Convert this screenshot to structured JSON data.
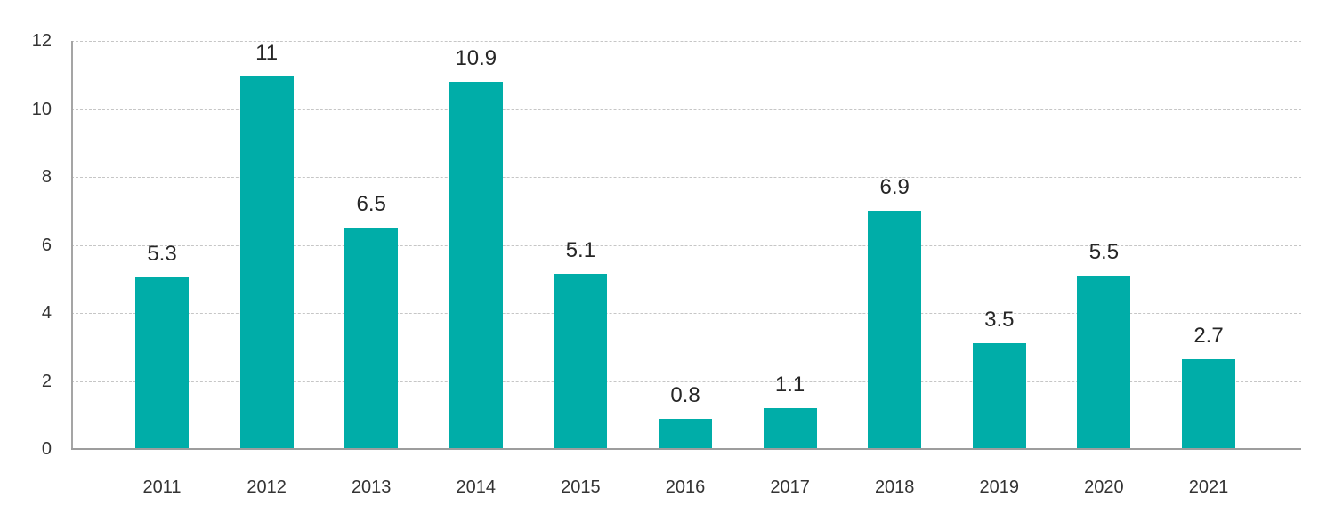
{
  "chart_data": {
    "type": "bar",
    "title": "",
    "xlabel": "",
    "ylabel": "",
    "categories": [
      "2011",
      "2012",
      "2013",
      "2014",
      "2015",
      "2016",
      "2017",
      "2018",
      "2019",
      "2020",
      "2021"
    ],
    "values": [
      5.3,
      11,
      6.5,
      10.9,
      5.1,
      0.8,
      1.1,
      6.9,
      3.5,
      5.5,
      2.7
    ],
    "value_labels": [
      "5.3",
      "11",
      "6.5",
      "10.9",
      "5.1",
      "0.8",
      "1.1",
      "6.9",
      "3.5",
      "5.5",
      "2.7"
    ],
    "bar_heights_as_drawn": [
      5.05,
      10.95,
      6.5,
      10.8,
      5.15,
      0.9,
      1.2,
      7.0,
      3.1,
      5.1,
      2.65
    ],
    "ylim": [
      0,
      12
    ],
    "yticks": [
      0,
      2,
      4,
      6,
      8,
      10,
      12
    ],
    "grid": "horizontal-dashed",
    "legend": "none",
    "colors": {
      "bar": "#00ADA8",
      "axis_line": "#9d9d9d",
      "y_axis_line": "#a5a5a5",
      "gridline": "#c6c6c6",
      "value_label": "#262626",
      "tick_label": "#333333",
      "background": "#ffffff"
    }
  }
}
